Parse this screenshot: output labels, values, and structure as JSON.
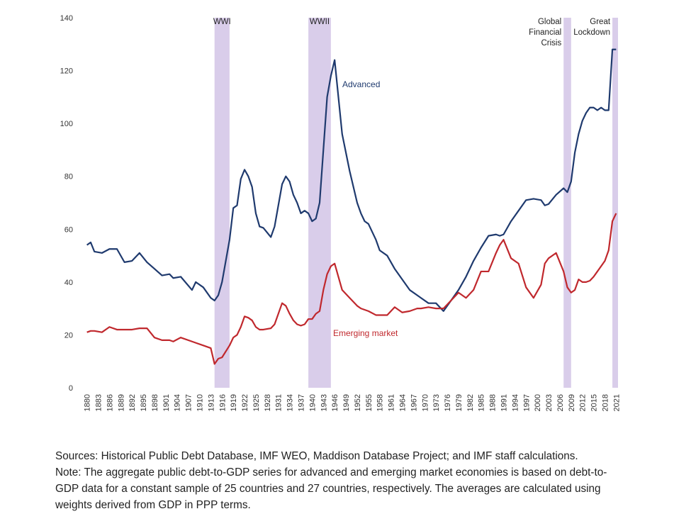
{
  "chart_data": {
    "type": "line",
    "xlim": [
      1879.5,
      2021.5
    ],
    "ylim": [
      0,
      140
    ],
    "yticks": [
      0,
      20,
      40,
      60,
      80,
      100,
      120,
      140
    ],
    "xticks": [
      1880,
      1883,
      1886,
      1889,
      1892,
      1895,
      1898,
      1901,
      1904,
      1907,
      1910,
      1913,
      1916,
      1919,
      1922,
      1925,
      1928,
      1931,
      1934,
      1937,
      1940,
      1943,
      1946,
      1949,
      1952,
      1955,
      1958,
      1961,
      1964,
      1967,
      1970,
      1973,
      1976,
      1979,
      1982,
      1985,
      1988,
      1991,
      1994,
      1997,
      2000,
      2003,
      2006,
      2009,
      2012,
      2015,
      2018,
      2021
    ],
    "grid": false,
    "x": [
      1880,
      1881,
      1882,
      1884,
      1886,
      1888,
      1890,
      1892,
      1894,
      1896,
      1898,
      1900,
      1902,
      1903,
      1905,
      1908,
      1909,
      1911,
      1913,
      1914,
      1915,
      1916,
      1918,
      1919,
      1920,
      1921,
      1922,
      1923,
      1924,
      1925,
      1926,
      1927,
      1929,
      1930,
      1932,
      1933,
      1934,
      1935,
      1936,
      1937,
      1938,
      1939,
      1940,
      1941,
      1942,
      1943,
      1944,
      1945,
      1946,
      1947,
      1948,
      1950,
      1952,
      1953,
      1954,
      1955,
      1957,
      1958,
      1960,
      1962,
      1964,
      1966,
      1968,
      1969,
      1971,
      1973,
      1975,
      1977,
      1979,
      1981,
      1983,
      1985,
      1987,
      1989,
      1990,
      1991,
      1993,
      1995,
      1997,
      1999,
      2001,
      2002,
      2003,
      2005,
      2007,
      2008,
      2009,
      2010,
      2011,
      2012,
      2013,
      2014,
      2015,
      2016,
      2017,
      2018,
      2019,
      2020,
      2021
    ],
    "series": [
      {
        "name": "Advanced",
        "color": "#1f3a6e",
        "values": [
          54,
          55,
          51.5,
          51,
          52.5,
          52.5,
          47.5,
          48,
          51,
          47.5,
          45,
          42.5,
          43,
          41.5,
          42,
          37,
          40,
          38,
          34,
          33,
          35,
          40,
          56,
          68,
          69,
          79,
          82.5,
          80,
          76,
          66,
          61,
          60.5,
          57,
          61,
          77,
          80,
          78,
          73,
          70,
          66,
          67,
          66,
          63,
          64,
          70,
          90,
          110,
          118,
          124,
          110,
          96,
          82,
          70,
          66,
          63,
          62,
          56,
          52,
          50,
          45,
          41,
          37,
          35,
          34,
          32,
          32,
          29,
          33,
          37,
          42,
          48,
          53,
          57.5,
          58,
          57.5,
          58,
          63,
          67,
          71,
          71.5,
          71,
          69,
          69.5,
          73,
          75.5,
          74,
          78,
          89,
          96,
          101,
          104,
          106,
          106,
          105,
          106,
          105,
          105,
          128,
          128
        ]
      },
      {
        "name": "Emerging market",
        "color": "#c0282d",
        "values": [
          21,
          21.5,
          21.5,
          21,
          23,
          22,
          22,
          22,
          22.5,
          22.5,
          19,
          18,
          18,
          17.5,
          19,
          17.5,
          17,
          16,
          15,
          9,
          11,
          11.5,
          16,
          19,
          20,
          23,
          27,
          26.5,
          25.5,
          23,
          22,
          22,
          22.5,
          24,
          32,
          31,
          28,
          25.5,
          24,
          23.5,
          24,
          26,
          26,
          28,
          29,
          37,
          43,
          46,
          47,
          42,
          37,
          34,
          31,
          30,
          29.5,
          29,
          27.5,
          27.5,
          27.5,
          30.5,
          28.5,
          29,
          30,
          30,
          30.5,
          30,
          30,
          33,
          36,
          34,
          37,
          44,
          44,
          51,
          54,
          56,
          49,
          47,
          38,
          34,
          39,
          47,
          49,
          51,
          44,
          38,
          36,
          37,
          41,
          40,
          40,
          40.5,
          42,
          44,
          46,
          48,
          52,
          63,
          66
        ]
      }
    ],
    "periods": [
      {
        "label": [
          "WWI"
        ],
        "start": 1914,
        "end": 1918
      },
      {
        "label": [
          "WWII"
        ],
        "start": 1939,
        "end": 1945
      },
      {
        "label": [
          "Global",
          "Financial",
          "Crisis"
        ],
        "start": 2007,
        "end": 2009
      },
      {
        "label": [
          "Great",
          "Lockdown"
        ],
        "start": 2020,
        "end": 2021.5
      }
    ],
    "notes": [
      "Sources: Historical Public Debt Database, IMF WEO, Maddison Database Project; and IMF staff calculations.",
      "Note: The aggregate public debt-to-GDP series for advanced and emerging market economies is based on debt-to-GDP data for a constant sample of 25 countries and 27 countries, respectively. The averages are calculated using weights derived from GDP in PPP terms."
    ]
  }
}
